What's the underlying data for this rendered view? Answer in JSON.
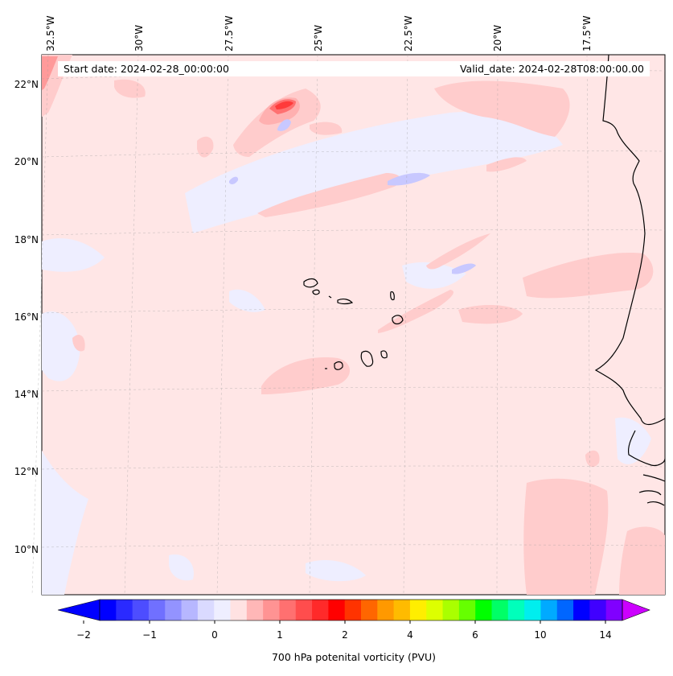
{
  "map": {
    "start_date": "Start date: 2024-02-28_00:00:00",
    "valid_date": "Valid_date: 2024-02-28T08:00:00.00",
    "longitude_labels": [
      "32.5°W",
      "30°W",
      "27.5°W",
      "25°W",
      "22.5°W",
      "20°W",
      "17.5°W"
    ],
    "latitude_labels": [
      "22°N",
      "20°N",
      "18°N",
      "16°N",
      "14°N",
      "12°N",
      "10°N"
    ],
    "colors": {
      "background_field": "#ffe6e6",
      "light_positive": "#ffcccc",
      "light_negative": "#eeeeff",
      "coastline": "#000000"
    }
  },
  "colorbar": {
    "label": "700 hPa potenital vorticity (PVU)",
    "tick_labels": [
      "−2",
      "−1",
      "0",
      "1",
      "2",
      "4",
      "6",
      "10",
      "14"
    ],
    "colors": [
      "#0000ff",
      "#2a2aff",
      "#4d4dff",
      "#7070ff",
      "#9393ff",
      "#b7b7ff",
      "#dadaff",
      "#eeeeff",
      "#ffe2e2",
      "#ffb7b7",
      "#ff9393",
      "#ff7070",
      "#ff4d4d",
      "#ff2a2a",
      "#ff0000",
      "#ff3300",
      "#ff6600",
      "#ff9900",
      "#ffbb00",
      "#ffee00",
      "#ddff00",
      "#aaff00",
      "#66ff00",
      "#00ff00",
      "#00ff66",
      "#00ffbb",
      "#00eeee",
      "#00aaff",
      "#0066ff",
      "#0000ff",
      "#4000ff",
      "#8000ff"
    ],
    "under_color": "#0000ff",
    "over_color": "#cc00ff"
  }
}
